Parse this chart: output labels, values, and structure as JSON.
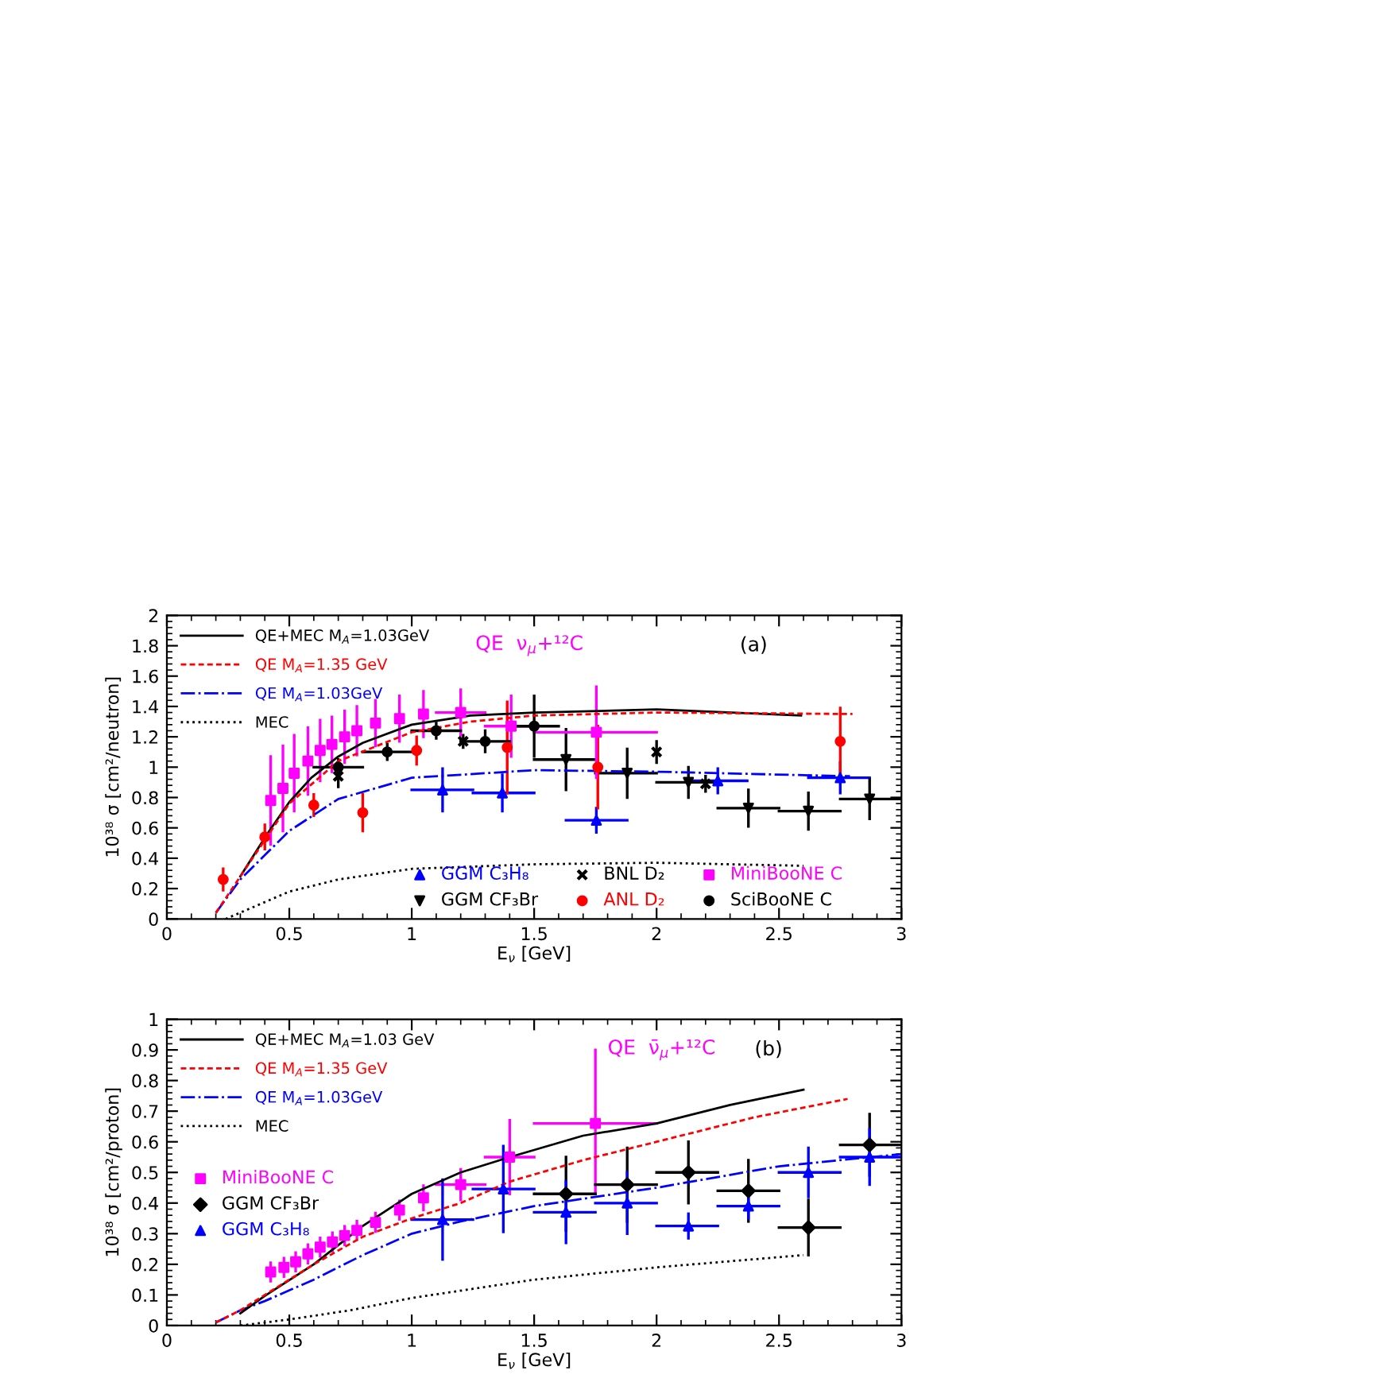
{
  "chart_data": [
    {
      "type": "line",
      "xlabel": "E$_{ν}$ [GeV]",
      "ylabel": "10³⁸ σ [cm²/neutron]",
      "xlim": [
        0,
        3
      ],
      "xticks": [
        0,
        0.5,
        1,
        1.5,
        2,
        2.5,
        3
      ],
      "ylim": [
        0,
        2
      ],
      "yticks": [
        0,
        0.2,
        0.4,
        0.6,
        0.8,
        1,
        1.2,
        1.4,
        1.6,
        1.8,
        2
      ],
      "legend": "left",
      "grid": false,
      "annotations": [
        "QE  ν$_{μ}$+¹²C",
        "(a)"
      ],
      "series": [
        {
          "name": "QE+MEC M$_{A}$=1.03GeV",
          "color": "#000000",
          "line_style": "solid",
          "x": [
            0.3,
            0.41,
            0.5,
            0.59,
            0.7,
            0.8,
            1.0,
            1.24,
            1.5,
            2.0,
            2.59
          ],
          "values": [
            0.28,
            0.56,
            0.77,
            0.93,
            1.07,
            1.16,
            1.28,
            1.34,
            1.36,
            1.38,
            1.34
          ]
        },
        {
          "name": "QE M$_{A}$=1.35 GeV",
          "color": "#ff0000",
          "line_style": "dashed",
          "x": [
            0.2,
            0.3,
            0.5,
            0.7,
            1.0,
            1.24,
            1.5,
            2.0,
            2.8
          ],
          "values": [
            0.04,
            0.28,
            0.76,
            1.04,
            1.23,
            1.3,
            1.34,
            1.36,
            1.35
          ]
        },
        {
          "name": "QE M$_{A}$=1.03GeV",
          "color": "#0000ff",
          "line_style": "dashdot",
          "x": [
            0.2,
            0.3,
            0.5,
            0.7,
            1.0,
            1.5,
            2.0,
            2.79
          ],
          "values": [
            0.04,
            0.26,
            0.58,
            0.79,
            0.93,
            0.98,
            0.97,
            0.94
          ]
        },
        {
          "name": "MEC",
          "color": "#000000",
          "line_style": "dotted",
          "x": [
            0.24,
            0.5,
            0.7,
            1.0,
            1.5,
            2.0,
            2.6
          ],
          "values": [
            0.0,
            0.18,
            0.26,
            0.33,
            0.36,
            0.37,
            0.35
          ]
        },
        {
          "name": "GGM C₃H₈",
          "type": "scatter",
          "marker": "triangle",
          "color": "#0000ff",
          "x": [
            1.126,
            1.37,
            1.754,
            2.25,
            2.75
          ],
          "values": [
            0.85,
            0.83,
            0.65,
            0.91,
            0.93
          ],
          "errors": [
            0.14,
            0.12,
            0.08,
            0.08,
            0.1
          ],
          "xerrors": [
            [
              1.0,
              1.25
            ],
            [
              1.25,
              1.5
            ],
            [
              1.63,
              1.88
            ],
            [
              2.13,
              2.37
            ],
            [
              2.62,
              2.87
            ]
          ]
        },
        {
          "name": "GGM CF₃Br",
          "type": "scatter",
          "marker": "triangle_down",
          "color": "#000000",
          "x": [
            1.63,
            1.88,
            2.13,
            2.375,
            2.62,
            2.87
          ],
          "values": [
            1.05,
            0.96,
            0.9,
            0.73,
            0.71,
            0.79
          ],
          "errors": [
            0.2,
            0.16,
            0.1,
            0.12,
            0.12,
            0.13
          ],
          "xerrors": [
            [
              1.5,
              1.75
            ],
            [
              1.75,
              2.0
            ],
            [
              2.0,
              2.25
            ],
            [
              2.25,
              2.5
            ],
            [
              2.5,
              2.75
            ],
            [
              2.75,
              3.0
            ]
          ]
        },
        {
          "name": "BNL D₂",
          "type": "scatter",
          "marker": "cross",
          "color": "#000000",
          "x": [
            0.7,
            1.21,
            2.0,
            2.2
          ],
          "values": [
            0.94,
            1.17,
            1.1,
            0.89
          ],
          "errors": [
            0.07,
            0.04,
            0.07,
            0.05
          ]
        },
        {
          "name": "ANL D₂",
          "type": "scatter",
          "marker": "circle",
          "color": "#ff0000",
          "x": [
            0.23,
            0.4,
            0.6,
            0.8,
            1.02,
            1.39,
            1.76,
            2.75
          ],
          "values": [
            0.26,
            0.54,
            0.75,
            0.7,
            1.11,
            1.13,
            1.0,
            1.17
          ],
          "errors": [
            0.07,
            0.08,
            0.07,
            0.12,
            0.09,
            0.3,
            0.27,
            0.22
          ]
        },
        {
          "name": "MiniBooNE C",
          "type": "scatter",
          "marker": "square",
          "color": "#ff00ff",
          "x": [
            0.424,
            0.474,
            0.52,
            0.576,
            0.626,
            0.674,
            0.726,
            0.776,
            0.852,
            0.95,
            1.048,
            1.2,
            1.406,
            1.754
          ],
          "values": [
            0.78,
            0.86,
            0.96,
            1.04,
            1.11,
            1.15,
            1.2,
            1.24,
            1.29,
            1.32,
            1.35,
            1.36,
            1.27,
            1.23
          ],
          "errors": [
            0.29,
            0.28,
            0.25,
            0.22,
            0.2,
            0.18,
            0.17,
            0.16,
            0.15,
            0.15,
            0.15,
            0.15,
            0.2,
            0.3
          ],
          "xerrors": [
            null,
            null,
            null,
            null,
            null,
            null,
            null,
            null,
            null,
            null,
            null,
            [
              1.1,
              1.3
            ],
            [
              1.3,
              1.5
            ],
            [
              1.5,
              2.0
            ]
          ]
        },
        {
          "name": "SciBooNE C",
          "type": "scatter",
          "marker": "circle",
          "color": "#000000",
          "x": [
            0.7,
            0.9,
            1.1,
            1.3,
            1.5
          ],
          "values": [
            1.0,
            1.1,
            1.24,
            1.17,
            1.27
          ],
          "errors": [
            0.05,
            0.05,
            0.05,
            0.07,
            0.2
          ],
          "xerrors": [
            [
              0.6,
              0.8
            ],
            [
              0.8,
              1.0
            ],
            [
              1.0,
              1.2
            ],
            [
              1.2,
              1.4
            ],
            [
              1.4,
              1.6
            ]
          ]
        }
      ]
    },
    {
      "type": "line",
      "xlabel": "E$_{ν}$ [GeV]",
      "ylabel": "10³⁸ σ [cm²/proton]",
      "xlim": [
        0,
        3
      ],
      "xticks": [
        0,
        0.5,
        1,
        1.5,
        2,
        2.5,
        3
      ],
      "ylim": [
        0,
        1
      ],
      "yticks": [
        0,
        0.1,
        0.2,
        0.3,
        0.4,
        0.5,
        0.6,
        0.7,
        0.8,
        0.9,
        1
      ],
      "legend": "top left",
      "grid": false,
      "annotations": [
        "QE  ν̄$_{μ}$+¹²C",
        "(b)"
      ],
      "series": [
        {
          "name": "QE+MEC M$_{A}$=1.03 GeV",
          "color": "#000000",
          "line_style": "solid",
          "x": [
            0.3,
            0.4,
            0.6,
            0.8,
            1.0,
            1.2,
            1.4,
            1.7,
            2.0,
            2.3,
            2.6
          ],
          "values": [
            0.04,
            0.097,
            0.2,
            0.325,
            0.43,
            0.5,
            0.55,
            0.62,
            0.66,
            0.72,
            0.77
          ]
        },
        {
          "name": "QE M$_{A}$=1.35 GeV",
          "color": "#ff0000",
          "line_style": "dashed",
          "x": [
            0.2,
            0.3,
            0.4,
            0.6,
            0.8,
            1.0,
            1.2,
            1.4,
            1.7,
            2.0,
            2.4,
            2.78
          ],
          "values": [
            0.01,
            0.05,
            0.1,
            0.2,
            0.29,
            0.35,
            0.4,
            0.47,
            0.54,
            0.6,
            0.68,
            0.74
          ]
        },
        {
          "name": "QE M$_{A}$=1.03GeV",
          "color": "#0000ff",
          "line_style": "dashdot",
          "x": [
            0.2,
            0.3,
            0.4,
            0.6,
            0.8,
            1.0,
            1.2,
            1.5,
            2.0,
            2.5,
            3.0
          ],
          "values": [
            0.01,
            0.05,
            0.08,
            0.15,
            0.23,
            0.3,
            0.34,
            0.39,
            0.45,
            0.52,
            0.56
          ]
        },
        {
          "name": "MEC",
          "color": "#000000",
          "line_style": "dotted",
          "x": [
            0.3,
            0.5,
            0.75,
            1.0,
            1.25,
            1.5,
            2.0,
            2.6
          ],
          "values": [
            0.0,
            0.02,
            0.05,
            0.09,
            0.12,
            0.15,
            0.19,
            0.23
          ]
        },
        {
          "name": "MiniBooNE C",
          "type": "scatter",
          "marker": "square",
          "color": "#ff00ff",
          "x": [
            0.424,
            0.478,
            0.526,
            0.576,
            0.626,
            0.676,
            0.726,
            0.776,
            0.852,
            0.95,
            1.048,
            1.2,
            1.4,
            1.75
          ],
          "values": [
            0.175,
            0.19,
            0.208,
            0.234,
            0.256,
            0.273,
            0.294,
            0.311,
            0.337,
            0.377,
            0.417,
            0.46,
            0.55,
            0.66
          ],
          "errors": [
            0.03,
            0.03,
            0.03,
            0.03,
            0.03,
            0.03,
            0.03,
            0.03,
            0.03,
            0.03,
            0.04,
            0.05,
            0.12,
            [
              0.43,
              0.9
            ]
          ],
          "xerrors": [
            null,
            null,
            null,
            null,
            null,
            null,
            null,
            null,
            null,
            null,
            null,
            [
              1.1,
              1.3
            ],
            [
              1.3,
              1.5
            ],
            [
              1.5,
              2.0
            ]
          ]
        },
        {
          "name": "GGM CF₃Br",
          "type": "scatter",
          "marker": "diamond",
          "color": "#000000",
          "x": [
            1.63,
            1.88,
            2.13,
            2.375,
            2.62,
            2.87
          ],
          "values": [
            0.43,
            0.46,
            0.5,
            0.44,
            0.32,
            0.59
          ],
          "errors": [
            0.12,
            0.12,
            0.1,
            0.1,
            0.09,
            0.1
          ],
          "xerrors": [
            [
              1.5,
              1.75
            ],
            [
              1.75,
              2.0
            ],
            [
              2.0,
              2.25
            ],
            [
              2.25,
              2.5
            ],
            [
              2.5,
              2.75
            ],
            [
              2.75,
              3.0
            ]
          ]
        },
        {
          "name": "GGM C₃H₈",
          "type": "scatter",
          "marker": "triangle",
          "color": "#0000ff",
          "x": [
            1.126,
            1.374,
            1.63,
            1.88,
            2.13,
            2.375,
            2.62,
            2.87
          ],
          "values": [
            0.346,
            0.446,
            0.37,
            0.4,
            0.325,
            0.39,
            0.5,
            0.55
          ],
          "errors": [
            0.13,
            0.14,
            0.1,
            0.1,
            0.04,
            0.04,
            0.08,
            0.09
          ],
          "xerrors": [
            [
              1.0,
              1.25
            ],
            [
              1.25,
              1.5
            ],
            [
              1.5,
              1.75
            ],
            [
              1.75,
              2.0
            ],
            [
              2.0,
              2.25
            ],
            [
              2.25,
              2.5
            ],
            [
              2.5,
              2.75
            ],
            [
              2.75,
              3.0
            ]
          ]
        }
      ]
    }
  ]
}
